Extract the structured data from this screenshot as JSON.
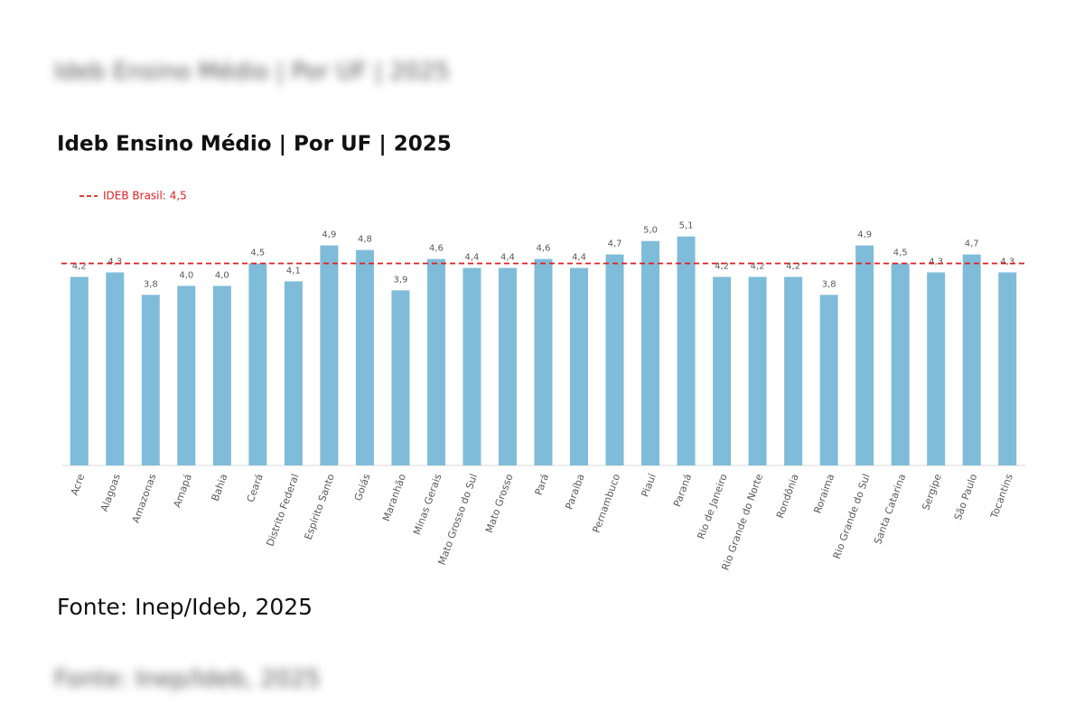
{
  "chart_data": {
    "type": "bar",
    "title": "Ideb Ensino Médio | Por UF | 2025",
    "source": "Fonte: Inep/Ideb, 2025",
    "categories": [
      "Acre",
      "Alagoas",
      "Amazonas",
      "Amapá",
      "Bahia",
      "Ceará",
      "Distrito Federal",
      "Espírito Santo",
      "Goiás",
      "Maranhão",
      "Minas Gerais",
      "Mato Grosso do Sul",
      "Mato Grosso",
      "Pará",
      "Paraíba",
      "Pernambuco",
      "Piauí",
      "Paraná",
      "Rio de Janeiro",
      "Rio Grande do Norte",
      "Rondônia",
      "Roraima",
      "Rio Grande do Sul",
      "Santa Catarina",
      "Sergipe",
      "São Paulo",
      "Tocantins"
    ],
    "values": [
      4.2,
      4.3,
      3.8,
      4.0,
      4.0,
      4.5,
      4.1,
      4.9,
      4.8,
      3.9,
      4.6,
      4.4,
      4.4,
      4.6,
      4.4,
      4.7,
      5.0,
      5.1,
      4.2,
      4.2,
      4.2,
      3.8,
      4.9,
      4.5,
      4.3,
      4.7,
      4.3
    ],
    "value_labels": [
      "4,2",
      "4,3",
      "3,8",
      "4,0",
      "4,0",
      "4,5",
      "4,1",
      "4,9",
      "4,8",
      "3,9",
      "4,6",
      "4,4",
      "4,4",
      "4,6",
      "4,4",
      "4,7",
      "5,0",
      "5,1",
      "4,2",
      "4,2",
      "4,2",
      "3,8",
      "4,9",
      "4,5",
      "4,3",
      "4,7",
      "4,3"
    ],
    "color": "#7fbcd9",
    "ylim": [
      0,
      6
    ],
    "reference_line": {
      "value": 4.5,
      "label": "IDEB Brasil: 4,5",
      "color": "#e02020"
    }
  }
}
